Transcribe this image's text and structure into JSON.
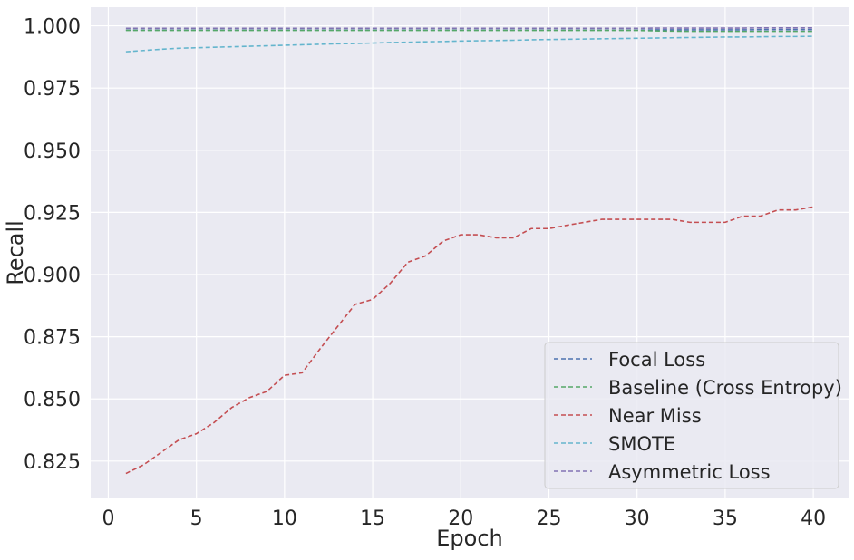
{
  "chart_data": {
    "type": "line",
    "title": "",
    "xlabel": "Epoch",
    "ylabel": "Recall",
    "xlim": [
      -1,
      42
    ],
    "ylim": [
      0.81,
      1.0075
    ],
    "xticks": [
      0,
      5,
      10,
      15,
      20,
      25,
      30,
      35,
      40
    ],
    "xtick_labels": [
      "0",
      "5",
      "10",
      "15",
      "20",
      "25",
      "30",
      "35",
      "40"
    ],
    "yticks": [
      0.825,
      0.85,
      0.875,
      0.9,
      0.925,
      0.95,
      0.975,
      1.0
    ],
    "ytick_labels": [
      "0.825",
      "0.850",
      "0.875",
      "0.900",
      "0.925",
      "0.950",
      "0.975",
      "1.000"
    ],
    "grid": true,
    "legend_position": "bottom-right",
    "x": [
      1,
      2,
      3,
      4,
      5,
      6,
      7,
      8,
      9,
      10,
      11,
      12,
      13,
      14,
      15,
      16,
      17,
      18,
      19,
      20,
      21,
      22,
      23,
      24,
      25,
      26,
      27,
      28,
      29,
      30,
      31,
      32,
      33,
      34,
      35,
      36,
      37,
      38,
      39,
      40
    ],
    "series": [
      {
        "name": "Focal Loss",
        "color": "#4c72b0",
        "values": [
          0.9983,
          0.9983,
          0.9983,
          0.9983,
          0.9983,
          0.9983,
          0.9983,
          0.9983,
          0.9983,
          0.9983,
          0.9983,
          0.9983,
          0.9983,
          0.9983,
          0.9983,
          0.9983,
          0.9983,
          0.9983,
          0.9983,
          0.9983,
          0.9983,
          0.9983,
          0.9983,
          0.9983,
          0.9983,
          0.9983,
          0.9983,
          0.9983,
          0.9983,
          0.9983,
          0.9984,
          0.9984,
          0.9984,
          0.9984,
          0.9984,
          0.9984,
          0.9985,
          0.9985,
          0.9985,
          0.9985
        ]
      },
      {
        "name": "Baseline (Cross Entropy)",
        "color": "#55a868",
        "values": [
          0.9982,
          0.9982,
          0.9982,
          0.9982,
          0.9982,
          0.9982,
          0.9982,
          0.9982,
          0.9982,
          0.9982,
          0.9982,
          0.9982,
          0.9982,
          0.9982,
          0.9982,
          0.9982,
          0.9982,
          0.9982,
          0.9982,
          0.9982,
          0.9982,
          0.9982,
          0.9982,
          0.9982,
          0.9982,
          0.9982,
          0.9982,
          0.9982,
          0.9982,
          0.9982,
          0.998,
          0.9979,
          0.9978,
          0.9978,
          0.9978,
          0.9978,
          0.9978,
          0.9978,
          0.9978,
          0.9978
        ]
      },
      {
        "name": "Near Miss",
        "color": "#c44e52",
        "values": [
          0.82,
          0.8235,
          0.8285,
          0.8335,
          0.836,
          0.8405,
          0.8465,
          0.8505,
          0.853,
          0.8595,
          0.8605,
          0.87,
          0.879,
          0.888,
          0.89,
          0.8965,
          0.905,
          0.9075,
          0.9135,
          0.916,
          0.916,
          0.9148,
          0.9148,
          0.9185,
          0.9185,
          0.9198,
          0.921,
          0.9222,
          0.9222,
          0.9222,
          0.9222,
          0.9222,
          0.921,
          0.921,
          0.921,
          0.9235,
          0.9235,
          0.926,
          0.926,
          0.9272
        ]
      },
      {
        "name": "SMOTE",
        "color": "#64b5cd",
        "values": [
          0.9896,
          0.9901,
          0.9906,
          0.991,
          0.9912,
          0.9914,
          0.9916,
          0.9918,
          0.992,
          0.9922,
          0.9924,
          0.9926,
          0.9928,
          0.9929,
          0.9931,
          0.9933,
          0.9934,
          0.9936,
          0.9937,
          0.9939,
          0.994,
          0.9941,
          0.9942,
          0.9944,
          0.9945,
          0.9946,
          0.9947,
          0.9948,
          0.9949,
          0.995,
          0.9951,
          0.9952,
          0.9953,
          0.9954,
          0.9955,
          0.9955,
          0.9956,
          0.9957,
          0.9957,
          0.9958
        ]
      },
      {
        "name": "Asymmetric Loss",
        "color": "#8172b3",
        "values": [
          0.999,
          0.999,
          0.999,
          0.999,
          0.999,
          0.999,
          0.999,
          0.999,
          0.999,
          0.999,
          0.999,
          0.999,
          0.999,
          0.999,
          0.999,
          0.999,
          0.999,
          0.999,
          0.999,
          0.999,
          0.999,
          0.999,
          0.999,
          0.999,
          0.999,
          0.999,
          0.999,
          0.999,
          0.999,
          0.999,
          0.9991,
          0.9991,
          0.9991,
          0.9991,
          0.9991,
          0.9991,
          0.9992,
          0.9992,
          0.9992,
          0.9992
        ]
      }
    ]
  }
}
